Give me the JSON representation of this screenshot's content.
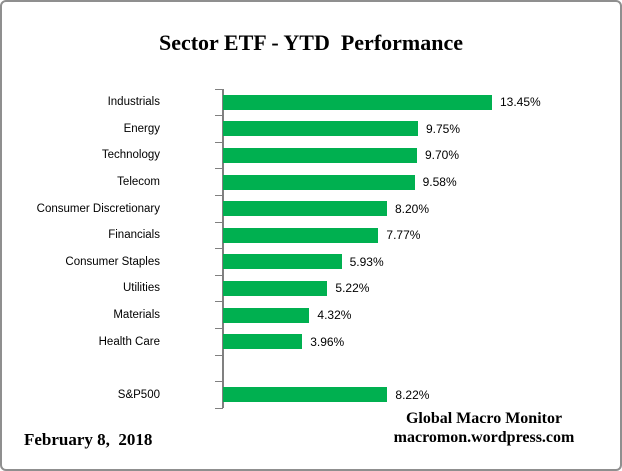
{
  "chart_data": {
    "type": "bar",
    "orientation": "horizontal",
    "title": "Sector ETF - YTD  Performance",
    "categories": [
      "Industrials",
      "Energy",
      "Technology",
      "Telecom",
      "Consumer Discretionary",
      "Financials",
      "Consumer Staples",
      "Utilities",
      "Materials",
      "Health Care",
      "S&P500"
    ],
    "values": [
      13.45,
      9.75,
      9.7,
      9.58,
      8.2,
      7.77,
      5.93,
      5.22,
      4.32,
      3.96,
      8.22
    ],
    "value_labels": [
      "13.45%",
      "9.75%",
      "9.70%",
      "9.58%",
      "8.20%",
      "7.77%",
      "5.93%",
      "5.22%",
      "4.32%",
      "3.96%",
      "8.22%"
    ],
    "gap_before_last": true,
    "bar_color": "#00B050",
    "axis_color": "#808080",
    "xlim": [
      0,
      16
    ],
    "grid": false,
    "legend": false,
    "value_label_position": "end-of-bar"
  },
  "footer": {
    "date": "February 8,  2018",
    "source_line1": "Global Macro Monitor",
    "source_line2": "macromon.wordpress.com"
  }
}
